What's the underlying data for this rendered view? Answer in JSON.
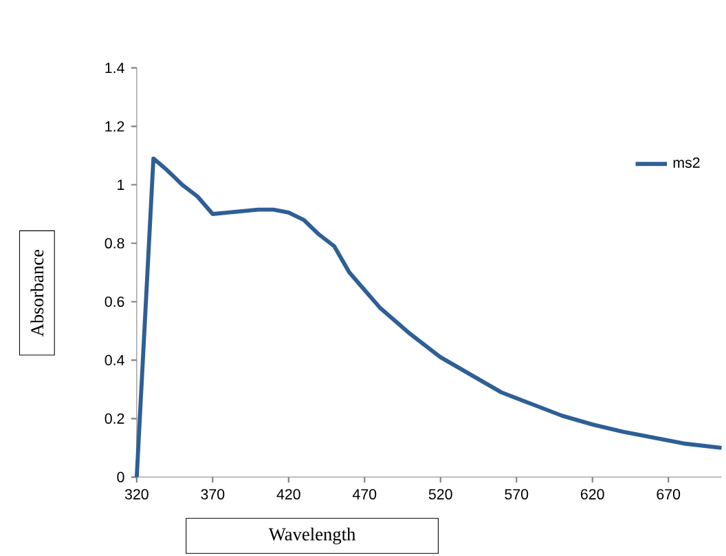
{
  "chart_data": {
    "type": "line",
    "xlabel": "Wavelength",
    "ylabel": "Absorbance",
    "xlim": [
      320,
      705
    ],
    "xticks": [
      320,
      370,
      420,
      470,
      520,
      570,
      620,
      670
    ],
    "ylim": [
      0,
      1.4
    ],
    "yticks": [
      0,
      0.2,
      0.4,
      0.6,
      0.8,
      1,
      1.2,
      1.4
    ],
    "legend": "top right",
    "marker": "none",
    "line_style": "solid",
    "series": [
      {
        "name": "ms2",
        "color": "#2e5f95",
        "x": [
          320,
          331,
          340,
          350,
          360,
          370,
          380,
          400,
          410,
          420,
          430,
          440,
          450,
          460,
          470,
          480,
          500,
          520,
          540,
          560,
          580,
          600,
          620,
          640,
          660,
          680,
          705
        ],
        "values": [
          0,
          1.09,
          1.05,
          1.0,
          0.96,
          0.9,
          0.905,
          0.915,
          0.915,
          0.905,
          0.88,
          0.83,
          0.79,
          0.7,
          0.64,
          0.58,
          0.49,
          0.41,
          0.35,
          0.29,
          0.25,
          0.21,
          0.18,
          0.155,
          0.135,
          0.115,
          0.1
        ]
      }
    ]
  }
}
